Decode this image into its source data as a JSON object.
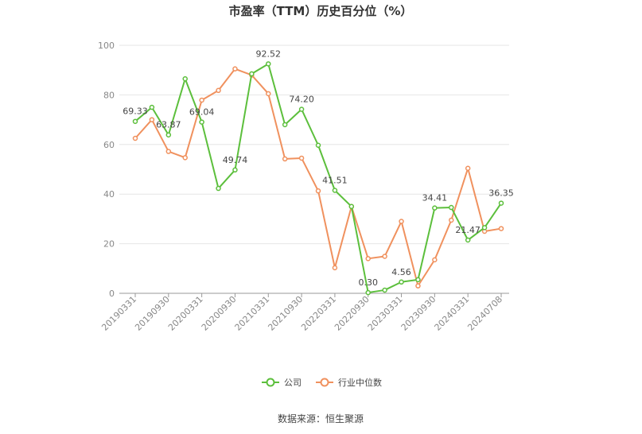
{
  "chart_data": {
    "type": "line",
    "title": "市盈率（TTM）历史百分位（%）",
    "xlabel": "",
    "ylabel": "",
    "ylim": [
      0,
      100
    ],
    "yticks": [
      0,
      20,
      40,
      60,
      80,
      100
    ],
    "grid": true,
    "legend_position": "bottom",
    "x": [
      "20190331",
      "20190630",
      "20190930",
      "20191231",
      "20200331",
      "20200630",
      "20200930",
      "20201231",
      "20210331",
      "20210630",
      "20210930",
      "20211231",
      "20220331",
      "20220630",
      "20220930",
      "20221231",
      "20230331",
      "20230630",
      "20230930",
      "20231231",
      "20240331",
      "20240630",
      "20240708"
    ],
    "x_tick_labels": [
      "20190331",
      "20190930",
      "20200331",
      "20200930",
      "20210331",
      "20210930",
      "20220331",
      "20220930",
      "20230331",
      "20230930",
      "20240331",
      "20240708"
    ],
    "series": [
      {
        "name": "公司",
        "color": "#5cbf3c",
        "values": [
          69.33,
          75.0,
          63.87,
          86.5,
          69.04,
          42.3,
          49.74,
          88.5,
          92.52,
          68.0,
          74.2,
          59.7,
          41.51,
          35.0,
          0.3,
          1.3,
          4.56,
          5.5,
          34.41,
          34.6,
          21.47,
          26.5,
          36.35
        ],
        "data_labels": {
          "0": "69.33",
          "2": "63.87",
          "4": "69.04",
          "6": "49.74",
          "8": "92.52",
          "10": "74.20",
          "12": "41.51",
          "14": "0.30",
          "16": "4.56",
          "18": "34.41",
          "20": "21.47",
          "22": "36.35"
        }
      },
      {
        "name": "行业中位数",
        "color": "#f0915e",
        "values": [
          62.5,
          70.0,
          57.2,
          54.7,
          77.9,
          81.8,
          90.5,
          88.0,
          80.5,
          54.2,
          54.5,
          41.3,
          10.3,
          35.0,
          14.0,
          14.9,
          29.0,
          3.0,
          13.5,
          29.5,
          50.4,
          25.0,
          26.1
        ]
      }
    ]
  },
  "footer": {
    "source": "数据来源：恒生聚源"
  }
}
